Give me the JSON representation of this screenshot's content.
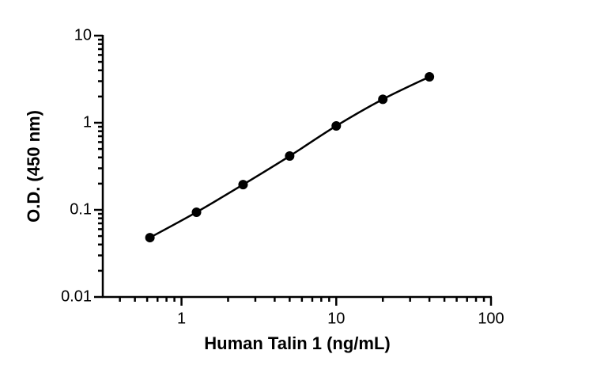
{
  "chart_data": {
    "type": "scatter",
    "x_label": "Human Talin 1 (ng/mL)",
    "y_label": "O.D. (450 nm)",
    "x": [
      0.625,
      1.25,
      2.5,
      5,
      10,
      20,
      40
    ],
    "y": [
      0.048,
      0.094,
      0.195,
      0.415,
      0.92,
      1.86,
      3.37
    ],
    "color": "#000000",
    "fit_curve": true,
    "x_log": true,
    "y_log": true,
    "xlim": [
      0.31,
      100
    ],
    "ylim": [
      0.01,
      10
    ],
    "xticks": [
      1,
      10,
      100
    ],
    "yticks": [
      0.01,
      0.1,
      1,
      10
    ]
  }
}
